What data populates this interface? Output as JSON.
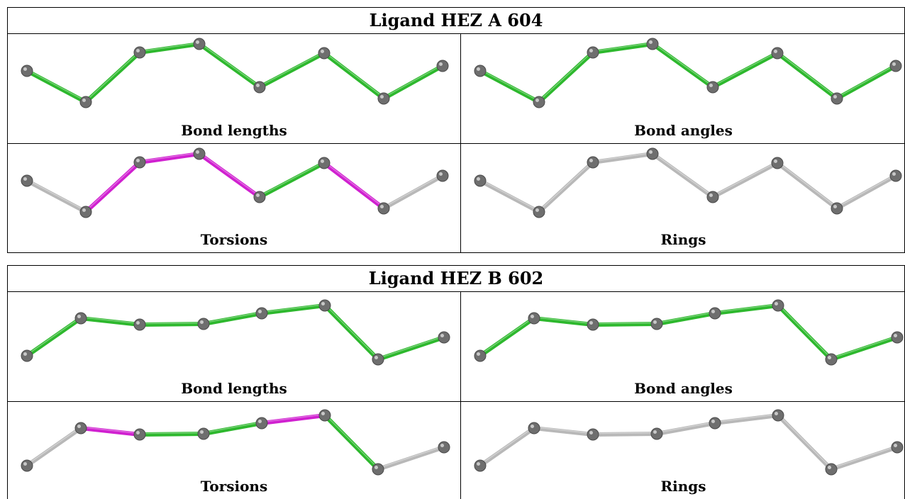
{
  "ligands": [
    {
      "title": "Ligand HEZ A 604",
      "panels": [
        {
          "label": "Bond lengths",
          "bonds": [
            "green",
            "green",
            "green",
            "green",
            "green",
            "green",
            "green"
          ]
        },
        {
          "label": "Bond angles",
          "bonds": [
            "green",
            "green",
            "green",
            "green",
            "green",
            "green",
            "green"
          ]
        },
        {
          "label": "Torsions",
          "bonds": [
            "gray",
            "magenta",
            "magenta",
            "magenta",
            "green",
            "magenta",
            "gray"
          ]
        },
        {
          "label": "Rings",
          "bonds": [
            "gray",
            "gray",
            "gray",
            "gray",
            "gray",
            "gray",
            "gray"
          ]
        }
      ]
    },
    {
      "title": "Ligand HEZ B 602",
      "panels": [
        {
          "label": "Bond lengths",
          "bonds": [
            "green",
            "green",
            "green",
            "green",
            "green",
            "green",
            "green"
          ]
        },
        {
          "label": "Bond angles",
          "bonds": [
            "green",
            "green",
            "green",
            "green",
            "green",
            "green",
            "green"
          ]
        },
        {
          "label": "Torsions",
          "bonds": [
            "gray",
            "magenta",
            "green",
            "green",
            "magenta",
            "green",
            "gray"
          ]
        },
        {
          "label": "Rings",
          "bonds": [
            "gray",
            "gray",
            "gray",
            "gray",
            "gray",
            "gray",
            "gray"
          ]
        }
      ]
    }
  ],
  "colors": {
    "green": "#2db82d",
    "magenta": "#d020d0",
    "gray": "#b8b8b8",
    "atom": "#6e6e6e"
  }
}
